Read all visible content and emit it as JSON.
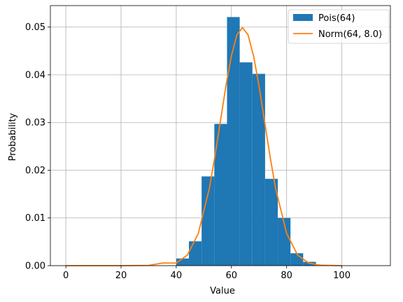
{
  "chart_data": {
    "type": "bar",
    "xlabel": "Value",
    "ylabel": "Probability",
    "xlim": [
      -5.6,
      117.6
    ],
    "ylim": [
      0,
      0.0545
    ],
    "xticks": [
      0,
      20,
      40,
      60,
      80,
      100
    ],
    "yticks": [
      0.0,
      0.01,
      0.02,
      0.03,
      0.04,
      0.05
    ],
    "ytick_labels": [
      "0.00",
      "0.01",
      "0.02",
      "0.03",
      "0.04",
      "0.05"
    ],
    "grid": true,
    "legend_position": "top-right",
    "series": [
      {
        "name": "Pois(64)",
        "kind": "histogram",
        "color": "#1f77b4",
        "bins": [
          {
            "x0": 40.0,
            "x1": 44.6,
            "value": 0.0015
          },
          {
            "x0": 44.6,
            "x1": 49.2,
            "value": 0.0051
          },
          {
            "x0": 49.2,
            "x1": 53.8,
            "value": 0.0187
          },
          {
            "x0": 53.8,
            "x1": 58.4,
            "value": 0.0297
          },
          {
            "x0": 58.4,
            "x1": 63.0,
            "value": 0.0521
          },
          {
            "x0": 63.0,
            "x1": 67.6,
            "value": 0.0426
          },
          {
            "x0": 67.6,
            "x1": 72.2,
            "value": 0.0402
          },
          {
            "x0": 72.2,
            "x1": 76.8,
            "value": 0.0182
          },
          {
            "x0": 76.8,
            "x1": 81.4,
            "value": 0.01
          },
          {
            "x0": 81.4,
            "x1": 86.0,
            "value": 0.0026
          },
          {
            "x0": 86.0,
            "x1": 90.6,
            "value": 0.0008
          }
        ]
      },
      {
        "name": "Norm(64, 8.0)",
        "kind": "line",
        "color": "#ff7f0e",
        "x": [
          0,
          10,
          20,
          30,
          35,
          40,
          44,
          48,
          52,
          54,
          56,
          58,
          60,
          62,
          64,
          66,
          68,
          70,
          72,
          74,
          76,
          80,
          84,
          88,
          92,
          100
        ],
        "y": [
          0.0,
          0.0,
          0.0,
          6e-05,
          0.00054,
          0.00055,
          0.0022,
          0.00675,
          0.0162,
          0.02285,
          0.03025,
          0.03765,
          0.044,
          0.0484,
          0.0499,
          0.0484,
          0.044,
          0.03765,
          0.03025,
          0.02285,
          0.0162,
          0.00675,
          0.0022,
          0.00055,
          0.00011,
          0.0
        ]
      }
    ]
  }
}
